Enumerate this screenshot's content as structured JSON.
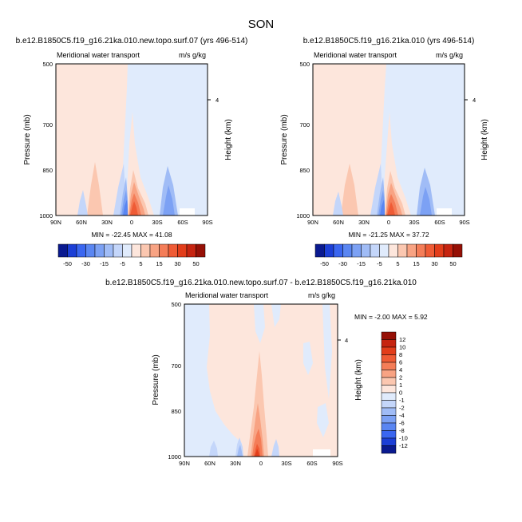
{
  "page_title": "SON",
  "chart_data": [
    {
      "type": "contour",
      "id": "left",
      "title": "b.e12.B1850C5.f19_g16.21ka.010.new.topo.surf.07 (yrs 496-514)",
      "left_label": "Meridional water transport",
      "right_label": "m/s g/kg",
      "ylabel": "Pressure (mb)",
      "y2label": "Height (km)",
      "x_ticks": [
        "90N",
        "60N",
        "30N",
        "0",
        "30S",
        "60S",
        "90S"
      ],
      "y_ticks": [
        "500",
        "700",
        "850",
        "1000"
      ],
      "y2_ticks": [
        "4"
      ],
      "stats": "MIN = -22.45   MAX =  41.08",
      "min": -22.45,
      "max": 41.08
    },
    {
      "type": "contour",
      "id": "right",
      "title": "b.e12.B1850C5.f19_g16.21ka.010 (yrs 496-514)",
      "left_label": "Meridional water transport",
      "right_label": "m/s g/kg",
      "ylabel": "Pressure (mb)",
      "y2label": "Height (km)",
      "x_ticks": [
        "90N",
        "60N",
        "30N",
        "0",
        "30S",
        "60S",
        "90S"
      ],
      "y_ticks": [
        "500",
        "700",
        "850",
        "1000"
      ],
      "y2_ticks": [
        "4"
      ],
      "stats": "MIN = -21.25   MAX =  37.72",
      "min": -21.25,
      "max": 37.72
    },
    {
      "type": "contour",
      "id": "diff",
      "title": "b.e12.B1850C5.f19_g16.21ka.010.new.topo.surf.07 - b.e12.B1850C5.f19_g16.21ka.010",
      "left_label": "Meridional water transport",
      "right_label": "m/s g/kg",
      "ylabel": "Pressure (mb)",
      "y2label": "Height (km)",
      "x_ticks": [
        "90N",
        "60N",
        "30N",
        "0",
        "30S",
        "60S",
        "90S"
      ],
      "y_ticks": [
        "500",
        "700",
        "850",
        "1000"
      ],
      "y2_ticks": [
        "4"
      ],
      "stats": "MIN = -2.00   MAX =   5.92",
      "min": -2.0,
      "max": 5.92
    }
  ],
  "colorbar_top": {
    "labels": [
      "-50",
      "-30",
      "-15",
      "-5",
      "5",
      "15",
      "30",
      "50"
    ],
    "colors": [
      "#0a1a90",
      "#1c3fd6",
      "#3a66f0",
      "#5a86f2",
      "#7ca1f4",
      "#a0bcf6",
      "#c4d6fa",
      "#e0ebfc",
      "#fde6dc",
      "#fbc7b0",
      "#f8a383",
      "#f47d58",
      "#ef5b35",
      "#e23d1a",
      "#c62410",
      "#961006"
    ]
  },
  "colorbar_diff": {
    "labels": [
      "12",
      "10",
      "8",
      "6",
      "4",
      "2",
      "1",
      "0",
      "-1",
      "-2",
      "-4",
      "-6",
      "-8",
      "-10",
      "-12"
    ],
    "colors": [
      "#961006",
      "#c62410",
      "#e23d1a",
      "#ef5b35",
      "#f47d58",
      "#f8a383",
      "#fbc7b0",
      "#fde6dc",
      "#e0ebfc",
      "#c4d6fa",
      "#a0bcf6",
      "#7ca1f4",
      "#5a86f2",
      "#3a66f0",
      "#1c3fd6",
      "#0a1a90"
    ]
  }
}
